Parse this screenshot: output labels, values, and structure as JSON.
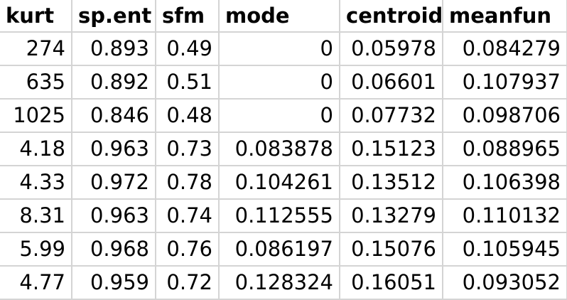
{
  "sheet": {
    "columns": [
      "kurt",
      "sp.ent",
      "sfm",
      "mode",
      "centroid",
      "meanfun"
    ],
    "rows": [
      [
        "274",
        "0.893",
        "0.49",
        "0",
        "0.05978",
        "0.084279"
      ],
      [
        "635",
        "0.892",
        "0.51",
        "0",
        "0.06601",
        "0.107937"
      ],
      [
        "1025",
        "0.846",
        "0.48",
        "0",
        "0.07732",
        "0.098706"
      ],
      [
        "4.18",
        "0.963",
        "0.73",
        "0.083878",
        "0.15123",
        "0.088965"
      ],
      [
        "4.33",
        "0.972",
        "0.78",
        "0.104261",
        "0.13512",
        "0.106398"
      ],
      [
        "8.31",
        "0.963",
        "0.74",
        "0.112555",
        "0.13279",
        "0.110132"
      ],
      [
        "5.99",
        "0.968",
        "0.76",
        "0.086197",
        "0.15076",
        "0.105945"
      ],
      [
        "4.77",
        "0.959",
        "0.72",
        "0.128324",
        "0.16051",
        "0.093052"
      ]
    ]
  }
}
